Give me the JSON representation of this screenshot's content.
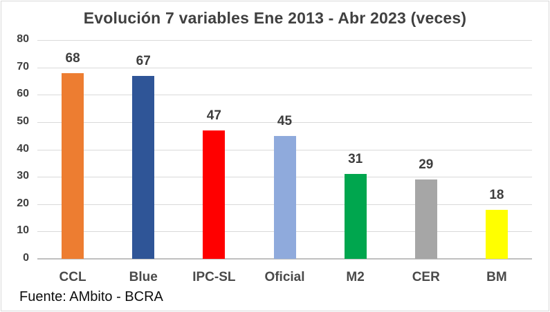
{
  "source_note": "Fuente: AMbito - BCRA",
  "chart_data": {
    "type": "bar",
    "title": "Evolución 7 variables Ene 2013 - Abr 2023 (veces)",
    "categories": [
      "CCL",
      "Blue",
      "IPC-SL",
      "Oficial",
      "M2",
      "CER",
      "BM"
    ],
    "values": [
      68,
      67,
      47,
      45,
      31,
      29,
      18
    ],
    "data_labels": [
      "68",
      "67",
      "47",
      "45",
      "31",
      "29",
      "18"
    ],
    "bar_colors": [
      "#ED7D31",
      "#2F5597",
      "#FF0000",
      "#8FAADC",
      "#00A64E",
      "#A6A6A6",
      "#FFFF00"
    ],
    "xlabel": "",
    "ylabel": "",
    "ylim": [
      0,
      80
    ],
    "yticks": [
      0,
      10,
      20,
      30,
      40,
      50,
      60,
      70,
      80
    ],
    "grid": "horizontal",
    "legend": "none",
    "annotations": [
      "Fuente: AMbito - BCRA"
    ]
  },
  "colors": {
    "gridline": "#d9d9d9",
    "axis_line": "#bfbfbf",
    "title_text": "#404040",
    "tick_text": "#404040",
    "category_text": "#4a4a4a",
    "source_text": "#0d0d0d",
    "frame_border": "#d9d9d9",
    "background": "#ffffff"
  }
}
